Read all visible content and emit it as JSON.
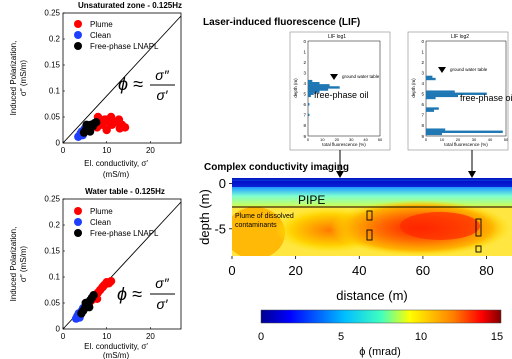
{
  "colors": {
    "plume": "#ff0000",
    "clean": "#1f3fff",
    "lnapl": "#000000",
    "lif_bar": "#1f77b4",
    "colormap": [
      "#00008f",
      "#0000ff",
      "#00bfff",
      "#40ffbf",
      "#ffff00",
      "#ff8000",
      "#ff0000",
      "#800000"
    ]
  },
  "panel_a": {
    "title": "Unsaturated zone - 0.125Hz",
    "xlabel_line1": "El. conductivity, σ′",
    "xlabel_line2": "(mS/m)",
    "ylabel_line1": "Induced Polarization,",
    "ylabel_line2": "σ″ (mS/m)",
    "legend": [
      "Plume",
      "Clean",
      "Free-phase LNAPL"
    ],
    "equation": {
      "lhs": "ϕ ≈",
      "num": "σ″",
      "den": "σ′"
    },
    "x_ticks": [
      "0",
      "10",
      "20"
    ],
    "y_ticks": [
      "0",
      "0.05",
      "0.1",
      "0.15",
      "0.2",
      "0.25"
    ]
  },
  "panel_b": {
    "title": "Water table - 0.125Hz",
    "xlabel_line1": "El. conductivity, σ′",
    "xlabel_line2": "(mS/m)",
    "ylabel_line1": "Induced Polarization,",
    "ylabel_line2": "σ″ (mS/m)",
    "legend": [
      "Plume",
      "Clean",
      "Free-phase LNAPL"
    ],
    "equation": {
      "lhs": "ϕ ≈",
      "num": "σ″",
      "den": "σ′"
    },
    "x_ticks": [
      "0",
      "10",
      "20"
    ],
    "y_ticks": [
      "0",
      "0.05",
      "0.1",
      "0.15",
      "0.2",
      "0.25"
    ]
  },
  "lif": {
    "header": "Laser-induced fluorescence (LIF)",
    "log1": {
      "title": "LIF log1",
      "gwt_label": "ground water table",
      "annotation": "free-phase oil",
      "xlabel": "total fluorescence (%)",
      "ylabel": "depth (m)",
      "y_ticks": [
        "0",
        "1",
        "2",
        "3",
        "4",
        "5",
        "6",
        "7",
        "8",
        "9"
      ],
      "x_ticks": [
        "0",
        "10",
        "20",
        "30",
        "40",
        "50"
      ]
    },
    "log2": {
      "title": "LIF log2",
      "gwt_label": "ground water table",
      "annotation": "free-phase oil",
      "xlabel": "total fluorescence (%)",
      "ylabel": "depth (m)",
      "y_ticks": [
        "0",
        "1",
        "2",
        "3",
        "4",
        "5",
        "6",
        "7",
        "8",
        "9"
      ],
      "x_ticks": [
        "0",
        "10",
        "20",
        "30",
        "40",
        "50"
      ]
    }
  },
  "cci": {
    "header": "Complex conductivity imaging",
    "pipe_label": "PIPE",
    "plume_label_line1": "Plume of dissolved",
    "plume_label_line2": "contaminants",
    "ylabel": "depth (m)",
    "xlabel": "distance (m)",
    "x_ticks": [
      "0",
      "20",
      "40",
      "60",
      "80"
    ],
    "y_ticks": [
      "0",
      "-5"
    ],
    "colorbar_ticks": [
      "0",
      "5",
      "10",
      "15"
    ],
    "colorbar_label": "ϕ (mrad)"
  },
  "chart_data": [
    {
      "type": "scatter",
      "title": "Unsaturated zone - 0.125Hz",
      "xlabel": "El. conductivity, σ′ (mS/m)",
      "ylabel": "Induced Polarization, σ″ (mS/m)",
      "xlim": [
        0,
        27
      ],
      "ylim": [
        0,
        0.25
      ],
      "series": [
        {
          "name": "Plume",
          "color": "#ff0000",
          "x": [
            6.5,
            7.2,
            7.8,
            8.4,
            9.0,
            9.8,
            10.5,
            11.2,
            12.0,
            12.8,
            13.5,
            14.2,
            8.0,
            9.5,
            11.0,
            12.5,
            10.0,
            13.0
          ],
          "y": [
            0.03,
            0.035,
            0.03,
            0.04,
            0.035,
            0.045,
            0.04,
            0.035,
            0.04,
            0.045,
            0.035,
            0.03,
            0.05,
            0.045,
            0.05,
            0.04,
            0.025,
            0.028
          ]
        },
        {
          "name": "Clean",
          "color": "#1f3fff",
          "x": [
            3.5,
            4.0,
            4.3,
            4.8,
            5.2,
            5.6,
            4.5,
            5.0
          ],
          "y": [
            0.012,
            0.018,
            0.022,
            0.02,
            0.025,
            0.03,
            0.015,
            0.028
          ]
        },
        {
          "name": "Free-phase LNAPL",
          "color": "#000000",
          "x": [
            4.8,
            5.2,
            5.6,
            6.0,
            6.4,
            6.8,
            7.2,
            7.6,
            5.4,
            6.2
          ],
          "y": [
            0.02,
            0.025,
            0.028,
            0.03,
            0.035,
            0.032,
            0.038,
            0.04,
            0.035,
            0.022
          ]
        }
      ]
    },
    {
      "type": "scatter",
      "title": "Water table - 0.125Hz",
      "xlabel": "El. conductivity, σ′ (mS/m)",
      "ylabel": "Induced Polarization, σ″ (mS/m)",
      "xlim": [
        0,
        27
      ],
      "ylim": [
        0,
        0.25
      ],
      "series": [
        {
          "name": "Plume",
          "color": "#ff0000",
          "x": [
            5.5,
            6.0,
            6.5,
            7.0,
            7.5,
            8.0,
            8.5,
            9.0,
            9.5,
            10.0,
            10.5,
            11.0,
            7.8,
            9.2
          ],
          "y": [
            0.045,
            0.05,
            0.055,
            0.06,
            0.065,
            0.07,
            0.075,
            0.08,
            0.085,
            0.09,
            0.088,
            0.092,
            0.058,
            0.082
          ]
        },
        {
          "name": "Clean",
          "color": "#1f3fff",
          "x": [
            3.0,
            3.3,
            3.6,
            4.0,
            4.3,
            4.6,
            3.8
          ],
          "y": [
            0.02,
            0.025,
            0.03,
            0.028,
            0.035,
            0.04,
            0.022
          ]
        },
        {
          "name": "Free-phase LNAPL",
          "color": "#000000",
          "x": [
            4.2,
            4.6,
            5.0,
            5.4,
            5.8,
            6.2,
            6.6,
            7.0,
            5.2,
            6.0
          ],
          "y": [
            0.03,
            0.035,
            0.04,
            0.045,
            0.05,
            0.055,
            0.06,
            0.065,
            0.05,
            0.042
          ]
        }
      ]
    },
    {
      "type": "bar",
      "title": "LIF log1",
      "xlabel": "total fluorescence (%)",
      "ylabel": "depth (m)",
      "orientation": "horizontal",
      "xlim": [
        0,
        50
      ],
      "ylim": [
        0,
        9
      ],
      "depths": [
        3.8,
        4.0,
        4.2,
        4.4,
        4.6,
        4.8,
        5.0,
        5.2,
        6.0,
        7.0
      ],
      "values": [
        3,
        8,
        15,
        22,
        14,
        8,
        4,
        2,
        1,
        1
      ]
    },
    {
      "type": "bar",
      "title": "LIF log2",
      "xlabel": "total fluorescence (%)",
      "ylabel": "depth (m)",
      "orientation": "horizontal",
      "xlim": [
        0,
        50
      ],
      "ylim": [
        0,
        9
      ],
      "depths": [
        3.4,
        3.6,
        4.8,
        5.0,
        5.2,
        5.4,
        6.4,
        6.6,
        8.4,
        8.6,
        8.8
      ],
      "values": [
        4,
        6,
        18,
        38,
        20,
        6,
        8,
        5,
        12,
        48,
        10
      ]
    },
    {
      "type": "heatmap",
      "title": "Complex conductivity imaging",
      "xlabel": "distance (m)",
      "ylabel": "depth (m)",
      "xlim": [
        0,
        88
      ],
      "ylim": [
        -8,
        0.6
      ],
      "colorbar": {
        "label": "ϕ (mrad)",
        "range": [
          0,
          15
        ]
      }
    }
  ]
}
